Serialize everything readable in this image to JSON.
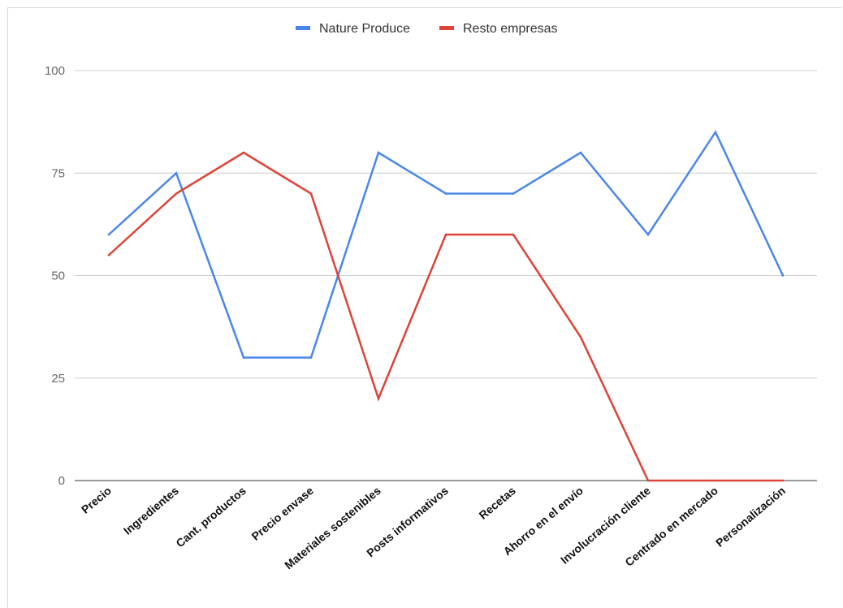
{
  "chart_data": {
    "type": "line",
    "title": "",
    "xlabel": "",
    "ylabel": "",
    "ylim": [
      0,
      100
    ],
    "yticks": [
      0,
      25,
      50,
      75,
      100
    ],
    "grid": true,
    "legend_position": "top",
    "categories": [
      "Precio",
      "Ingredientes",
      "Cant. productos",
      "Precio envase",
      "Materiales sostenibles",
      "Posts informativos",
      "Recetas",
      "Ahorro en el envío",
      "Involucración cliente",
      "Centrado en mercado",
      "Personalización"
    ],
    "series": [
      {
        "name": "Nature Produce",
        "color": "#4a86e8",
        "values": [
          60,
          75,
          30,
          30,
          80,
          70,
          70,
          80,
          60,
          85,
          50
        ]
      },
      {
        "name": "Resto empresas",
        "color": "#db4437",
        "values": [
          55,
          70,
          80,
          70,
          20,
          60,
          60,
          35,
          0,
          0,
          0
        ]
      }
    ]
  }
}
